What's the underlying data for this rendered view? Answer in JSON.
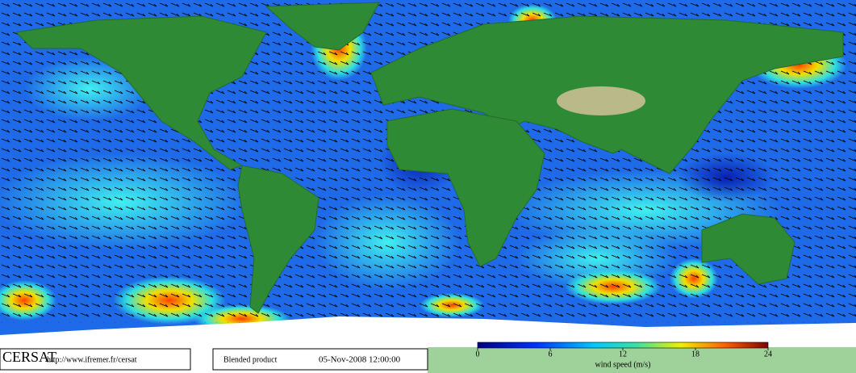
{
  "footer": {
    "logo": "CERSAT",
    "url": "http://www.ifremer.fr/cersat",
    "product": "Blended product",
    "date": "05-Nov-2008 12:00:00"
  },
  "colorbar": {
    "label": "wind speed (m/s)",
    "lim": [
      0,
      24
    ],
    "ticks": [
      0,
      6,
      12,
      18,
      24
    ]
  }
}
